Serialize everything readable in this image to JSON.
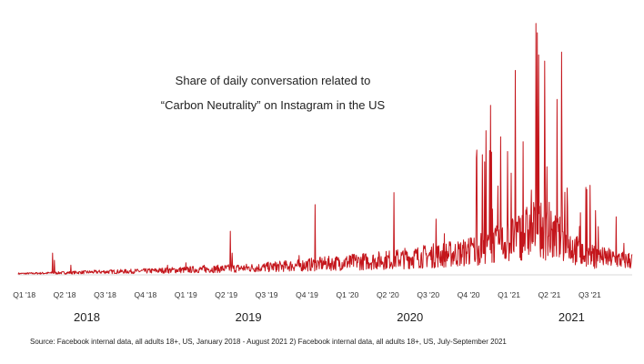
{
  "chart_data": {
    "type": "line",
    "title_line1": "Share of daily conversation related to",
    "title_line2": "“Carbon Neutrality” on Instagram in the US",
    "quarter_labels": [
      "Q1 '18",
      "Q2 '18",
      "Q3 '18",
      "Q4 '18",
      "Q1 '19",
      "Q2 '19",
      "Q3 '19",
      "Q4 '19",
      "Q1 '20",
      "Q2 '20",
      "Q3 '20",
      "Q4 '20",
      "Q1 '21",
      "Q2 '21",
      "Q3 '21"
    ],
    "year_labels": [
      "2018",
      "2019",
      "2020",
      "2021"
    ],
    "x_range_quarters": [
      0,
      15.2
    ],
    "ylim": [
      0,
      100
    ],
    "series": [
      {
        "name": "Share of daily conversation (relative index)",
        "color": "#c4161c",
        "baseline_points": [
          [
            0,
            0.5
          ],
          [
            1,
            0.8
          ],
          [
            2,
            1.2
          ],
          [
            3,
            1.5
          ],
          [
            4,
            2
          ],
          [
            5,
            2.5
          ],
          [
            6,
            3
          ],
          [
            7,
            4
          ],
          [
            8,
            5
          ],
          [
            9,
            6
          ],
          [
            10,
            7.5
          ],
          [
            11,
            9
          ],
          [
            12,
            13
          ],
          [
            12.8,
            19
          ],
          [
            13.5,
            14
          ],
          [
            14,
            8
          ],
          [
            15,
            6
          ],
          [
            15.2,
            6
          ]
        ],
        "spikes": [
          {
            "x": 0.85,
            "value": 9
          },
          {
            "x": 0.9,
            "value": 6
          },
          {
            "x": 1.3,
            "value": 4
          },
          {
            "x": 3.7,
            "value": 4
          },
          {
            "x": 4.15,
            "value": 5
          },
          {
            "x": 4.6,
            "value": 4
          },
          {
            "x": 5.25,
            "value": 18
          },
          {
            "x": 5.3,
            "value": 9
          },
          {
            "x": 6.4,
            "value": 5
          },
          {
            "x": 6.95,
            "value": 8
          },
          {
            "x": 7.35,
            "value": 29
          },
          {
            "x": 8.2,
            "value": 8
          },
          {
            "x": 9.3,
            "value": 34
          },
          {
            "x": 10.35,
            "value": 23
          },
          {
            "x": 10.55,
            "value": 17
          },
          {
            "x": 11.15,
            "value": 15
          },
          {
            "x": 11.5,
            "value": 22
          },
          {
            "x": 11.7,
            "value": 70
          },
          {
            "x": 11.95,
            "value": 57
          },
          {
            "x": 12.2,
            "value": 42
          },
          {
            "x": 12.5,
            "value": 55
          },
          {
            "x": 12.7,
            "value": 35
          },
          {
            "x": 12.85,
            "value": 100
          },
          {
            "x": 13.05,
            "value": 45
          },
          {
            "x": 13.15,
            "value": 30
          },
          {
            "x": 13.45,
            "value": 92
          },
          {
            "x": 13.6,
            "value": 28
          },
          {
            "x": 13.9,
            "value": 20
          },
          {
            "x": 14.3,
            "value": 14
          },
          {
            "x": 14.8,
            "value": 24
          },
          {
            "x": 15.0,
            "value": 13
          }
        ]
      }
    ]
  },
  "source": "Source: Facebook internal data, all adults 18+, US, January 2018 - August 2021 2) Facebook internal data, all adults 18+, US, July-September 2021"
}
